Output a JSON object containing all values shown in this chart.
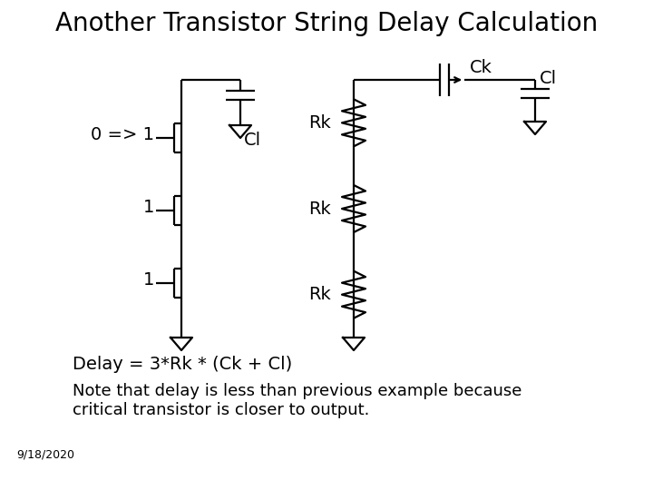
{
  "title": "Another Transistor String Delay Calculation",
  "title_fontsize": 20,
  "bg_color": "#ffffff",
  "text_color": "#000000",
  "line_color": "#000000",
  "line_width": 1.6,
  "delay_text": "Delay = 3*Rk * (Ck + Cl)",
  "delay_fontsize": 14,
  "note_text": "Note that delay is less than previous example because\ncritical transistor is closer to output.",
  "note_fontsize": 13,
  "date_text": "9/18/2020",
  "date_fontsize": 9,
  "label_0to1": "0 => 1",
  "label_1a": "1",
  "label_1b": "1",
  "label_Cl_left": "Cl",
  "label_Rk1": "Rk",
  "label_Rk2": "Rk",
  "label_Rk3": "Rk",
  "label_Ck": "Ck",
  "label_Cl_right": "Cl",
  "label_fontsize": 14
}
